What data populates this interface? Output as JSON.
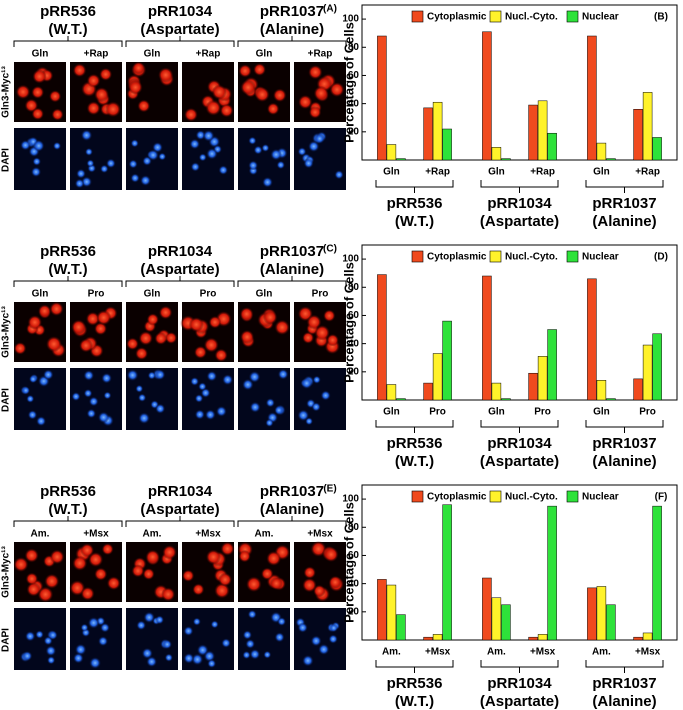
{
  "image_panels": [
    {
      "label": "(A)",
      "strains": [
        {
          "name": "pRR536",
          "sub": "(W.T.)"
        },
        {
          "name": "pRR1034",
          "sub": "(Aspartate)"
        },
        {
          "name": "pRR1037",
          "sub": "(Alanine)"
        }
      ],
      "conditions": [
        "Gln",
        "+Rap"
      ],
      "rows": [
        "Gln3-Myc¹³",
        "DAPI"
      ]
    },
    {
      "label": "(C)",
      "strains": [
        {
          "name": "pRR536",
          "sub": "(W.T.)"
        },
        {
          "name": "pRR1034",
          "sub": "(Aspartate)"
        },
        {
          "name": "pRR1037",
          "sub": "(Alanine)"
        }
      ],
      "conditions": [
        "Gln",
        "Pro"
      ],
      "rows": [
        "Gln3-Myc¹³",
        "DAPI"
      ]
    },
    {
      "label": "(E)",
      "strains": [
        {
          "name": "pRR536",
          "sub": "(W.T.)"
        },
        {
          "name": "pRR1034",
          "sub": "(Aspartate)"
        },
        {
          "name": "pRR1037",
          "sub": "(Alanine)"
        }
      ],
      "conditions": [
        "Am.",
        "+Msx"
      ],
      "rows": [
        "Gln3-Myc¹³",
        "DAPI"
      ]
    }
  ],
  "chart_data": [
    {
      "type": "bar",
      "label": "(B)",
      "ylabel": "Percentage of Cells",
      "ylim": [
        0,
        110
      ],
      "yticks": [
        20,
        40,
        60,
        80,
        100
      ],
      "categories": [
        "Gln",
        "+Rap",
        "Gln",
        "+Rap",
        "Gln",
        "+Rap"
      ],
      "groups": [
        {
          "name": "pRR536",
          "sub": "(W.T.)"
        },
        {
          "name": "pRR1034",
          "sub": "(Aspartate)"
        },
        {
          "name": "pRR1037",
          "sub": "(Alanine)"
        }
      ],
      "series": [
        {
          "name": "Cytoplasmic",
          "color": "#f04a1e",
          "values": [
            88,
            37,
            91,
            39,
            88,
            36
          ]
        },
        {
          "name": "Nucl.-Cyto.",
          "color": "#fff22a",
          "values": [
            11,
            41,
            9,
            42,
            12,
            48
          ]
        },
        {
          "name": "Nuclear",
          "color": "#2ee23a",
          "values": [
            1,
            22,
            1,
            19,
            1,
            16
          ]
        }
      ]
    },
    {
      "type": "bar",
      "label": "(D)",
      "ylabel": "Percentage of Cells",
      "ylim": [
        0,
        110
      ],
      "yticks": [
        20,
        40,
        60,
        80,
        100
      ],
      "categories": [
        "Gln",
        "Pro",
        "Gln",
        "Pro",
        "Gln",
        "Pro"
      ],
      "groups": [
        {
          "name": "pRR536",
          "sub": "(W.T.)"
        },
        {
          "name": "pRR1034",
          "sub": "(Aspartate)"
        },
        {
          "name": "pRR1037",
          "sub": "(Alanine)"
        }
      ],
      "series": [
        {
          "name": "Cytoplasmic",
          "color": "#f04a1e",
          "values": [
            89,
            12,
            88,
            19,
            86,
            15
          ]
        },
        {
          "name": "Nucl.-Cyto.",
          "color": "#fff22a",
          "values": [
            11,
            33,
            12,
            31,
            14,
            39
          ]
        },
        {
          "name": "Nuclear",
          "color": "#2ee23a",
          "values": [
            1,
            56,
            1,
            50,
            1,
            47
          ]
        }
      ]
    },
    {
      "type": "bar",
      "label": "(F)",
      "ylabel": "Percentage of Cells",
      "ylim": [
        0,
        110
      ],
      "yticks": [
        20,
        40,
        60,
        80,
        100
      ],
      "categories": [
        "Am.",
        "+Msx",
        "Am.",
        "+Msx",
        "Am.",
        "+Msx"
      ],
      "groups": [
        {
          "name": "pRR536",
          "sub": "(W.T.)"
        },
        {
          "name": "pRR1034",
          "sub": "(Aspartate)"
        },
        {
          "name": "pRR1037",
          "sub": "(Alanine)"
        }
      ],
      "series": [
        {
          "name": "Cytoplasmic",
          "color": "#f04a1e",
          "values": [
            43,
            2,
            44,
            2,
            37,
            2
          ]
        },
        {
          "name": "Nucl.-Cyto.",
          "color": "#fff22a",
          "values": [
            39,
            4,
            30,
            4,
            38,
            5
          ]
        },
        {
          "name": "Nuclear",
          "color": "#2ee23a",
          "values": [
            18,
            96,
            25,
            95,
            25,
            95
          ]
        }
      ]
    }
  ]
}
